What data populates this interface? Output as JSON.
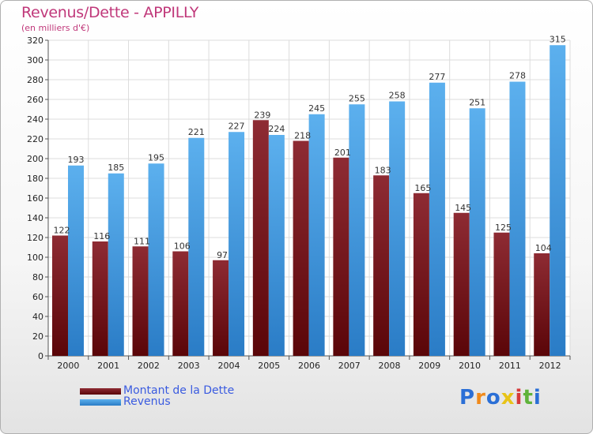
{
  "header": {
    "title": "Revenus/Dette - APPILLY",
    "subtitle": "(en milliers d'€)"
  },
  "legend": {
    "debt_label": "Montant de la Dette",
    "revenue_label": "Revenus"
  },
  "logo": {
    "text": "Proxiti"
  },
  "colors": {
    "title": "#c0387a",
    "debt_top": "#8e2b33",
    "debt_bottom": "#5a0508",
    "revenue_top": "#5cb0ee",
    "revenue_bottom": "#2a7cc6",
    "legend_text": "#3a5be0"
  },
  "chart_data": {
    "type": "bar",
    "title": "Revenus/Dette - APPILLY",
    "ylabel": "(en milliers d'€)",
    "xlabel": "",
    "categories": [
      "2000",
      "2001",
      "2002",
      "2003",
      "2004",
      "2005",
      "2006",
      "2007",
      "2008",
      "2009",
      "2010",
      "2011",
      "2012"
    ],
    "series": [
      {
        "name": "Montant de la Dette",
        "values": [
          122,
          116,
          111,
          106,
          97,
          239,
          218,
          201,
          183,
          165,
          145,
          125,
          104
        ]
      },
      {
        "name": "Revenus",
        "values": [
          193,
          185,
          195,
          221,
          227,
          224,
          245,
          255,
          258,
          277,
          251,
          278,
          315
        ]
      }
    ],
    "ylim": [
      0,
      320
    ],
    "yticks": [
      0,
      20,
      40,
      60,
      80,
      100,
      120,
      140,
      160,
      180,
      200,
      220,
      240,
      260,
      280,
      300,
      320
    ],
    "grid": true,
    "legend_position": "bottom-left"
  }
}
